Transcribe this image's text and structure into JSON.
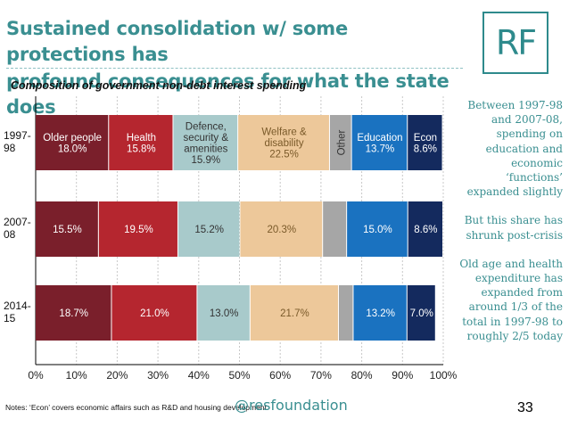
{
  "slide": {
    "title_line1": "Sustained consolidation w/ some protections has",
    "title_line2": "profound consequences for what the state does",
    "logo_text": "RF",
    "side_text": [
      "Between 1997-98 and 2007-08, spending on education and economic ‘functions’ expanded slightly",
      "But this share has shrunk post-crisis",
      "Old age and health expenditure has expanded from around 1/3 of the total in 1997-98 to roughly 2/5 today"
    ],
    "notes": "Notes: ‘Econ’ covers economic affairs such as R&D and housing development.",
    "handle": "@resfoundation",
    "page_number": "33"
  },
  "chart_data": {
    "type": "bar",
    "orientation": "horizontal",
    "stacked": true,
    "title": "Composition of government non-debt interest spending",
    "categories": [
      "1997-98",
      "2007-08",
      "2014-15"
    ],
    "xlim": [
      0,
      100
    ],
    "x_ticks": [
      "0%",
      "10%",
      "20%",
      "30%",
      "40%",
      "50%",
      "60%",
      "70%",
      "80%",
      "90%",
      "100%"
    ],
    "grid": true,
    "legend": "none",
    "series": [
      {
        "name": "Older people",
        "color": "#7a1f2b",
        "text_color": "#ffffff",
        "values": [
          18.0,
          15.5,
          18.7
        ],
        "labels": [
          "18.0%",
          "15.5%",
          "18.7%"
        ]
      },
      {
        "name": "Health",
        "color": "#b5262f",
        "text_color": "#ffffff",
        "values": [
          15.8,
          19.5,
          21.0
        ],
        "labels": [
          "15.8%",
          "19.5%",
          "21.0%"
        ]
      },
      {
        "name": "Defence, security & amenities",
        "color": "#a8cacb",
        "text_color": "#333333",
        "values": [
          15.9,
          15.2,
          13.0
        ],
        "labels": [
          "15.9%",
          "15.2%",
          "13.0%"
        ]
      },
      {
        "name": "Welfare & disability",
        "color": "#edc89a",
        "text_color": "#7a5a2a",
        "values": [
          22.5,
          20.3,
          21.7
        ],
        "labels": [
          "22.5%",
          "20.3%",
          "21.7%"
        ]
      },
      {
        "name": "Other",
        "color": "#a6a6a6",
        "text_color": "#333333",
        "values": [
          5.4,
          5.9,
          3.6
        ],
        "labels": [
          "",
          "",
          ""
        ]
      },
      {
        "name": "Education",
        "color": "#1a72c0",
        "text_color": "#ffffff",
        "values": [
          13.7,
          15.0,
          13.2
        ],
        "labels": [
          "13.7%",
          "15.0%",
          "13.2%"
        ]
      },
      {
        "name": "Econ",
        "color": "#142a5e",
        "text_color": "#ffffff",
        "values": [
          8.6,
          8.6,
          7.0
        ],
        "labels": [
          "8.6%",
          "8.6%",
          "7.0%"
        ]
      }
    ],
    "first_row_series_names": {
      "Older people": [
        "Older people"
      ],
      "Health": [
        "Health"
      ],
      "Defence, security & amenities": [
        "Defence,",
        "security &",
        "amenities"
      ],
      "Welfare & disability": [
        "Welfare &",
        "disability"
      ],
      "Other": [
        "Other"
      ],
      "Education": [
        "Education"
      ],
      "Econ": [
        "Econ"
      ]
    }
  }
}
